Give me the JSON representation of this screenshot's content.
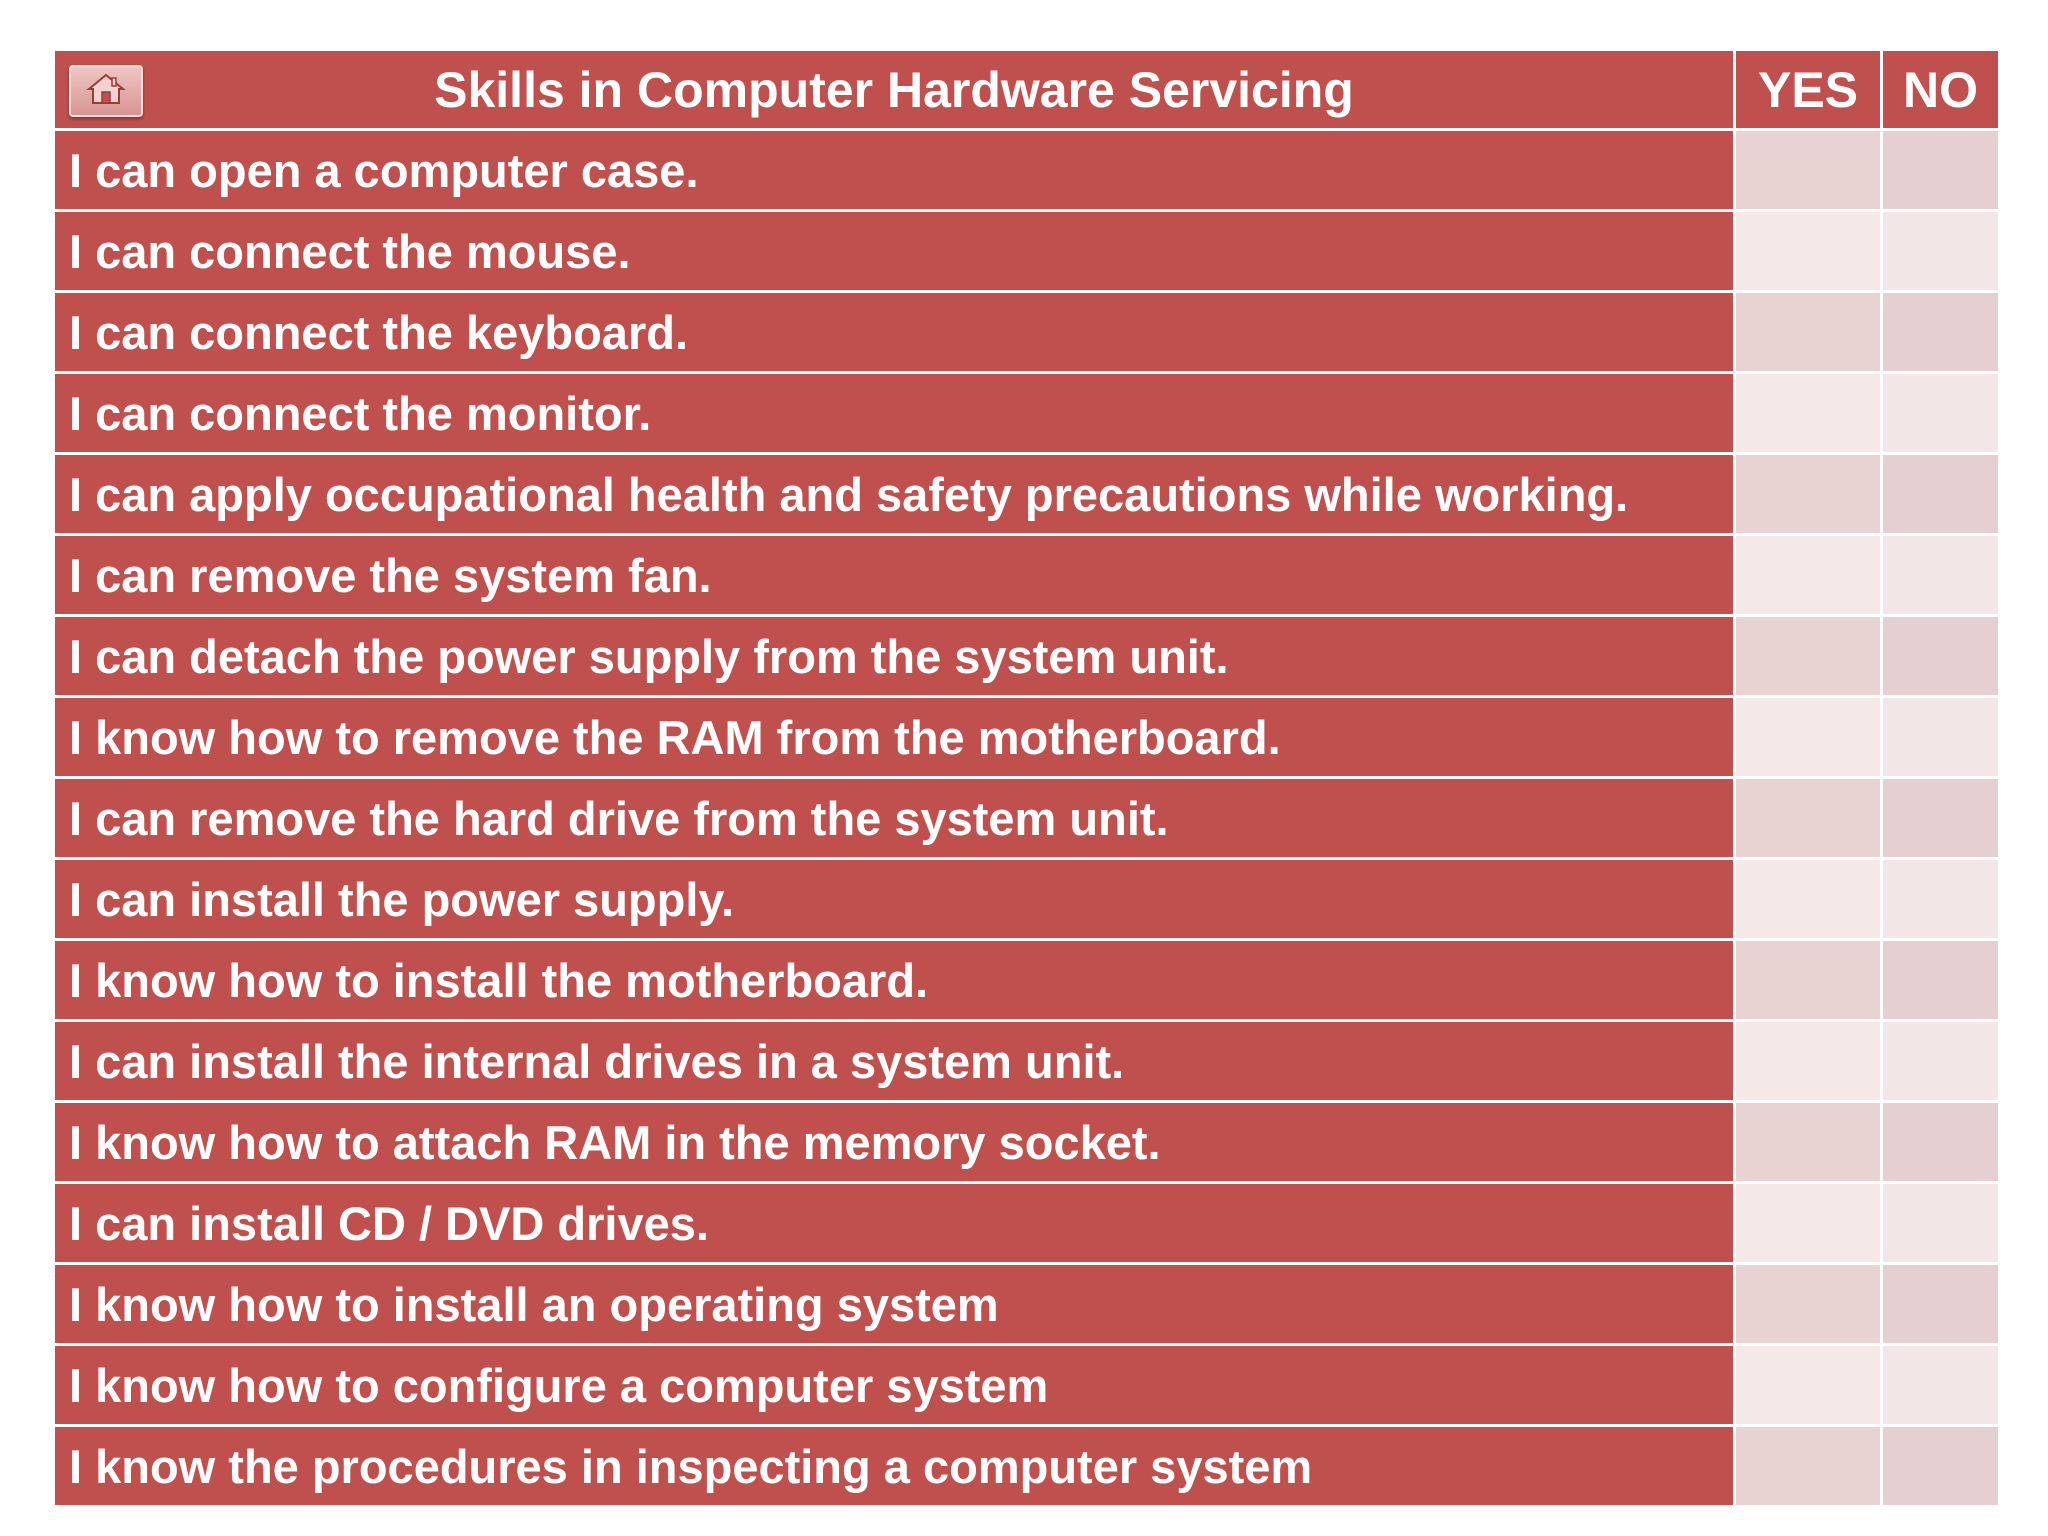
{
  "header": {
    "title": "Skills in Computer Hardware Servicing",
    "yes_label": "YES",
    "no_label": "NO",
    "home_icon": "home-icon"
  },
  "colors": {
    "header_red": "#c0504d",
    "row_red": "#c0504d",
    "check_cell_dark": "#e9d2d2",
    "check_cell_light": "#f4e9e7",
    "text": "#ffffff"
  },
  "skills": [
    "I can open a computer case.",
    "I can connect the mouse.",
    "I can connect the keyboard.",
    "I can connect the monitor.",
    "I can apply occupational health and safety precautions while working.",
    "I can remove the system fan.",
    "I can detach the power supply from the system unit.",
    "I know how to remove the RAM from the motherboard.",
    "I can remove the hard drive from the system unit.",
    "I can install the power supply.",
    "I know how to install the motherboard.",
    "I can install the internal drives in a system unit.",
    "I know how to attach RAM in the memory socket.",
    "I can install CD / DVD drives.",
    "I know how to install an operating system",
    "I know how to configure a computer system",
    "I know the procedures in inspecting a computer system"
  ]
}
